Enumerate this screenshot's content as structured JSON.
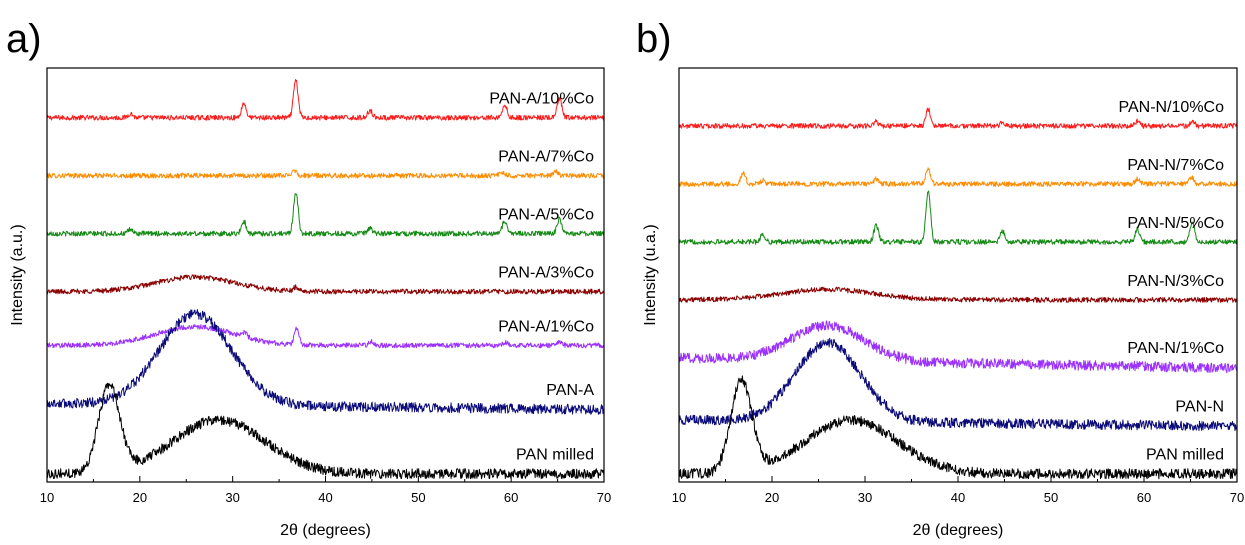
{
  "chart_data": [
    {
      "type": "line",
      "panel_label": "a)",
      "xlabel": "2θ (degrees)",
      "ylabel": "Intensity (a.u.)",
      "xlim": [
        10,
        70
      ],
      "x_ticks": [
        10,
        20,
        30,
        40,
        50,
        60,
        70
      ],
      "y_ticks_labeled": false,
      "series": [
        {
          "name": "PAN-A/10%Co",
          "color": "#ff1a1a",
          "level": 0.88,
          "amorphous": {
            "center": 26,
            "width": 6,
            "height": 0.0
          },
          "peaks": [
            [
              19.0,
              0.01
            ],
            [
              31.2,
              0.035
            ],
            [
              36.8,
              0.09
            ],
            [
              44.8,
              0.018
            ],
            [
              59.3,
              0.03
            ],
            [
              65.2,
              0.045
            ]
          ]
        },
        {
          "name": "PAN-A/7%Co",
          "color": "#ff8c00",
          "level": 0.74,
          "amorphous": {
            "center": 26,
            "width": 6,
            "height": 0.0
          },
          "peaks": [
            [
              36.6,
              0.015
            ],
            [
              59.0,
              0.008
            ],
            [
              64.8,
              0.01
            ]
          ]
        },
        {
          "name": "PAN-A/5%Co",
          "color": "#138a13",
          "level": 0.6,
          "amorphous": {
            "center": 26,
            "width": 6,
            "height": 0.0
          },
          "peaks": [
            [
              19.0,
              0.01
            ],
            [
              31.2,
              0.03
            ],
            [
              36.8,
              0.1
            ],
            [
              44.8,
              0.012
            ],
            [
              59.3,
              0.03
            ],
            [
              65.2,
              0.035
            ]
          ]
        },
        {
          "name": "PAN-A/3%Co",
          "color": "#8b0000",
          "level": 0.46,
          "amorphous": {
            "center": 26,
            "width": 6,
            "height": 0.035
          },
          "peaks": [
            [
              36.8,
              0.01
            ]
          ]
        },
        {
          "name": "PAN-A/1%Co",
          "color": "#9b30ff",
          "level": 0.33,
          "amorphous": {
            "center": 26,
            "width": 6,
            "height": 0.045
          },
          "peaks": [
            [
              31.3,
              0.012
            ],
            [
              36.9,
              0.04
            ],
            [
              44.9,
              0.01
            ],
            [
              59.4,
              0.008
            ],
            [
              65.2,
              0.01
            ]
          ]
        },
        {
          "name": "PAN-A",
          "color": "#0b0b7a",
          "level": 0.19,
          "amorphous": {
            "center": 26,
            "width": 5.5,
            "height": 0.22
          },
          "tail": -0.015,
          "peaks": []
        },
        {
          "name": "PAN milled",
          "color": "#000000",
          "level": 0.02,
          "amorphous": {
            "center": 28.5,
            "width": 7,
            "height": 0.13
          },
          "sharp": [
            16.7,
            1.6,
            0.21
          ],
          "peaks": []
        }
      ]
    },
    {
      "type": "line",
      "panel_label": "b)",
      "xlabel": "2θ (degrees)",
      "ylabel": "Intensity (u.a.)",
      "xlim": [
        10,
        70
      ],
      "x_ticks": [
        10,
        20,
        30,
        40,
        50,
        60,
        70
      ],
      "y_ticks_labeled": false,
      "series": [
        {
          "name": "PAN-N/10%Co",
          "color": "#ff1a1a",
          "level": 0.86,
          "amorphous": {
            "center": 26,
            "width": 6,
            "height": 0.0
          },
          "peaks": [
            [
              31.2,
              0.01
            ],
            [
              36.8,
              0.04
            ],
            [
              44.8,
              0.008
            ],
            [
              59.3,
              0.012
            ],
            [
              65.2,
              0.012
            ]
          ]
        },
        {
          "name": "PAN-N/7%Co",
          "color": "#ff8c00",
          "level": 0.72,
          "amorphous": {
            "center": 26,
            "width": 6,
            "height": 0.0
          },
          "peaks": [
            [
              16.9,
              0.025
            ],
            [
              19.0,
              0.008
            ],
            [
              31.2,
              0.012
            ],
            [
              36.8,
              0.035
            ],
            [
              59.3,
              0.012
            ],
            [
              65.1,
              0.015
            ]
          ]
        },
        {
          "name": "PAN-N/5%Co",
          "color": "#138a13",
          "level": 0.58,
          "amorphous": {
            "center": 26,
            "width": 6,
            "height": 0.0
          },
          "peaks": [
            [
              19.0,
              0.018
            ],
            [
              31.2,
              0.04
            ],
            [
              36.8,
              0.12
            ],
            [
              44.8,
              0.025
            ],
            [
              59.3,
              0.03
            ],
            [
              65.2,
              0.05
            ]
          ]
        },
        {
          "name": "PAN-N/3%Co",
          "color": "#8b0000",
          "level": 0.44,
          "amorphous": {
            "center": 26,
            "width": 7,
            "height": 0.025
          },
          "peaks": []
        },
        {
          "name": "PAN-N/1%Co",
          "color": "#9b30ff",
          "level": 0.3,
          "amorphous": {
            "center": 26,
            "width": 5.5,
            "height": 0.085
          },
          "tail": -0.025,
          "peaks": []
        },
        {
          "name": "PAN-N",
          "color": "#0b0b7a",
          "level": 0.15,
          "amorphous": {
            "center": 26,
            "width": 5.0,
            "height": 0.19
          },
          "tail": -0.015,
          "peaks": []
        },
        {
          "name": "PAN milled",
          "color": "#000000",
          "level": 0.02,
          "amorphous": {
            "center": 28.5,
            "width": 7,
            "height": 0.13
          },
          "sharp": [
            16.7,
            1.6,
            0.22
          ],
          "peaks": []
        }
      ]
    }
  ]
}
